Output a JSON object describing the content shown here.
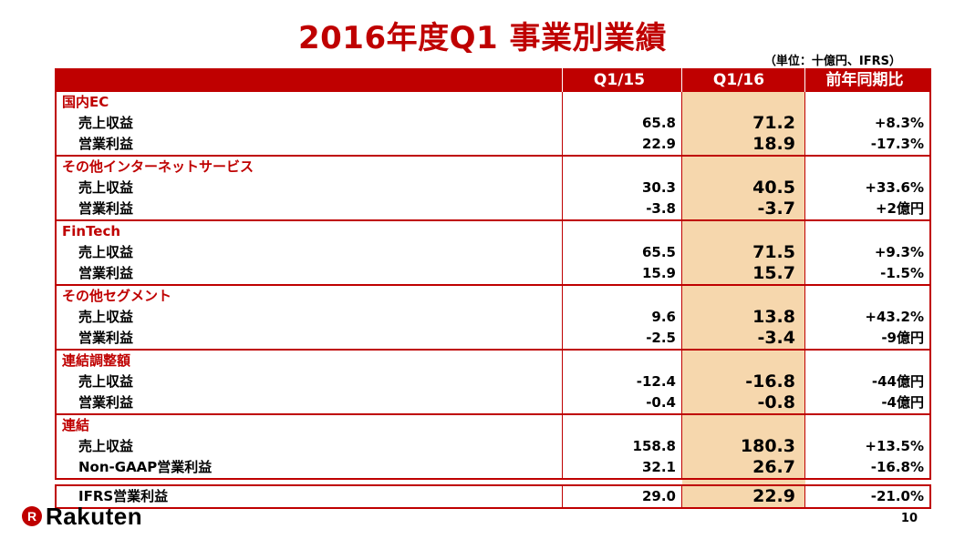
{
  "title": "2016年度Q1 事業別業績",
  "unit_note": "（単位：十億円、IFRS）",
  "header": {
    "label": "",
    "q15": "Q1/15",
    "q16": "Q1/16",
    "yoy": "前年同期比"
  },
  "segments": [
    {
      "name": "国内EC",
      "rows": [
        {
          "label": "売上収益",
          "q15": "65.8",
          "q16": "71.2",
          "yoy": "+8.3%"
        },
        {
          "label": "営業利益",
          "q15": "22.9",
          "q16": "18.9",
          "yoy": "-17.3%"
        }
      ]
    },
    {
      "name": "その他インターネットサービス",
      "rows": [
        {
          "label": "売上収益",
          "q15": "30.3",
          "q16": "40.5",
          "yoy": "+33.6%"
        },
        {
          "label": "営業利益",
          "q15": "-3.8",
          "q16": "-3.7",
          "yoy": "+2億円"
        }
      ]
    },
    {
      "name": "FinTech",
      "rows": [
        {
          "label": "売上収益",
          "q15": "65.5",
          "q16": "71.5",
          "yoy": "+9.3%"
        },
        {
          "label": "営業利益",
          "q15": "15.9",
          "q16": "15.7",
          "yoy": "-1.5%"
        }
      ]
    },
    {
      "name": "その他セグメント",
      "rows": [
        {
          "label": "売上収益",
          "q15": "9.6",
          "q16": "13.8",
          "yoy": "+43.2%"
        },
        {
          "label": "営業利益",
          "q15": "-2.5",
          "q16": "-3.4",
          "yoy": "-9億円"
        }
      ]
    },
    {
      "name": "連結調整額",
      "rows": [
        {
          "label": "売上収益",
          "q15": "-12.4",
          "q16": "-16.8",
          "yoy": "-44億円"
        },
        {
          "label": "営業利益",
          "q15": "-0.4",
          "q16": "-0.8",
          "yoy": "-4億円"
        }
      ]
    },
    {
      "name": "連結",
      "rows": [
        {
          "label": "売上収益",
          "q15": "158.8",
          "q16": "180.3",
          "yoy": "+13.5%"
        },
        {
          "label": "Non-GAAP営業利益",
          "q15": "32.1",
          "q16": "26.7",
          "yoy": "-16.8%"
        }
      ]
    }
  ],
  "ifrs_row": {
    "label": "IFRS営業利益",
    "q15": "29.0",
    "q16": "22.9",
    "yoy": "-21.0%"
  },
  "logo": {
    "mark": "R",
    "text": "Rakuten"
  },
  "page_number": "10",
  "colors": {
    "brand_red": "#bf0000",
    "highlight": "#f6d7ad"
  }
}
